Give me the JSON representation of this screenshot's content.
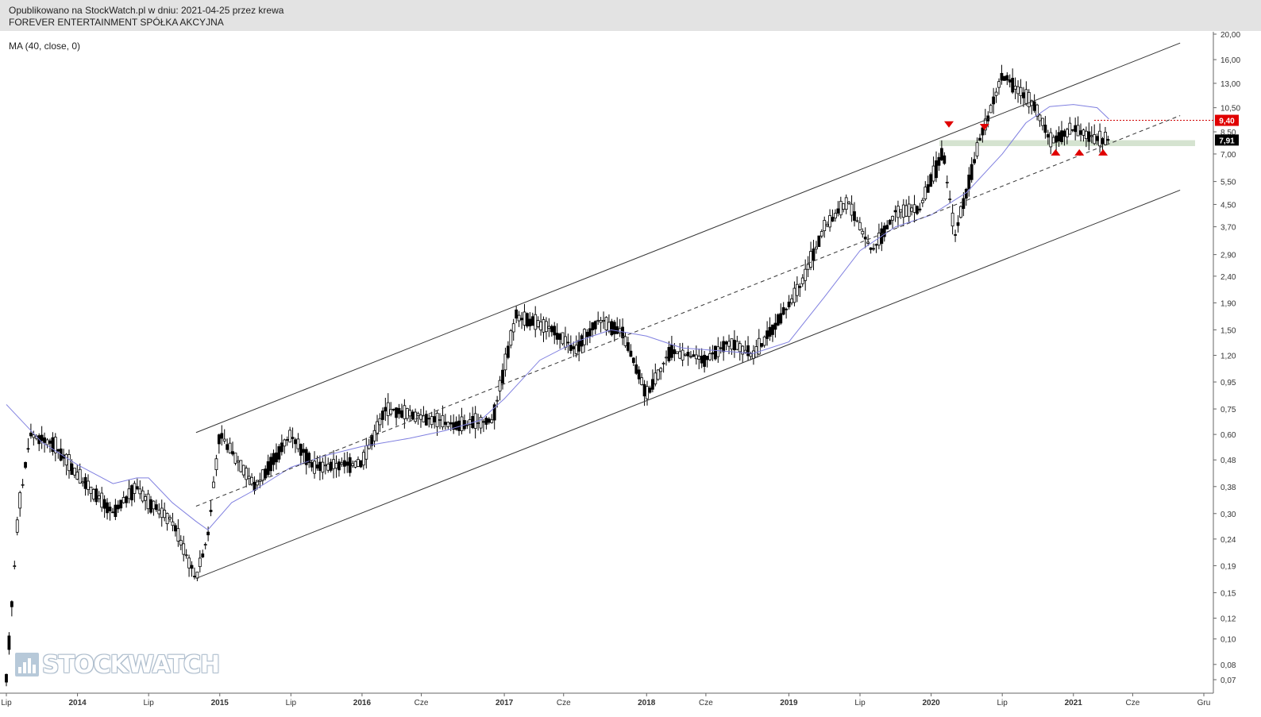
{
  "header": {
    "published": "Opublikowano na StockWatch.pl w dniu: 2021-04-25 przez krewa",
    "instrument": "FOREVER ENTERTAINMENT SPÓŁKA AKCYJNA"
  },
  "indicator_label": "MA (40, close, 0)",
  "watermark": {
    "text": "STOCKWATCH",
    "icon": "bar-chart-logo-icon"
  },
  "colors": {
    "candle": "#000000",
    "ma": "#8080e0",
    "channel": "#333333",
    "resistance": "#d00000",
    "marker": "#e00000",
    "zone": "#d5e3d0",
    "last_price_bg": "#000000",
    "level_bg": "#e00000"
  },
  "chart_data": {
    "type": "candlestick",
    "title": "",
    "x_tick_labels": [
      {
        "label": "Lip",
        "date": "2013-07"
      },
      {
        "label": "2014",
        "date": "2014-01"
      },
      {
        "label": "Lip",
        "date": "2014-07"
      },
      {
        "label": "2015",
        "date": "2015-01"
      },
      {
        "label": "Lip",
        "date": "2015-07"
      },
      {
        "label": "2016",
        "date": "2016-01"
      },
      {
        "label": "Cze",
        "date": "2016-06"
      },
      {
        "label": "2017",
        "date": "2017-01"
      },
      {
        "label": "Cze",
        "date": "2017-06"
      },
      {
        "label": "2018",
        "date": "2018-01"
      },
      {
        "label": "Cze",
        "date": "2018-06"
      },
      {
        "label": "2019",
        "date": "2019-01"
      },
      {
        "label": "Lip",
        "date": "2019-07"
      },
      {
        "label": "2020",
        "date": "2020-01"
      },
      {
        "label": "Lip",
        "date": "2020-07"
      },
      {
        "label": "2021",
        "date": "2021-01"
      },
      {
        "label": "Cze",
        "date": "2021-06"
      },
      {
        "label": "Gru",
        "date": "2021-12"
      }
    ],
    "y_scale": "log",
    "y_tick_labels": [
      "20,00",
      "16,00",
      "13,00",
      "10,50",
      "8,50",
      "7,00",
      "5,50",
      "4,50",
      "3,70",
      "2,90",
      "2,40",
      "1,90",
      "1,50",
      "1,20",
      "0,95",
      "0,75",
      "0,60",
      "0,48",
      "0,38",
      "0,30",
      "0,24",
      "0,19",
      "0,15",
      "0,12",
      "0,10",
      "0,08",
      "0,07"
    ],
    "price_labels": {
      "resistance": "9,40",
      "last_close": "7,91"
    },
    "resistance_level": 9.4,
    "last_close": 7.91,
    "support_zone": [
      7.5,
      7.9
    ],
    "series": [
      {
        "name": "MA (40, close, 0)",
        "kind": "line",
        "points": [
          [
            "2013-07",
            0.78
          ],
          [
            "2013-10",
            0.56
          ],
          [
            "2014-01",
            0.46
          ],
          [
            "2014-04",
            0.39
          ],
          [
            "2014-06",
            0.41
          ],
          [
            "2014-07",
            0.41
          ],
          [
            "2014-09",
            0.33
          ],
          [
            "2014-11",
            0.28
          ],
          [
            "2014-12",
            0.26
          ],
          [
            "2015-02",
            0.33
          ],
          [
            "2015-04",
            0.37
          ],
          [
            "2015-07",
            0.45
          ],
          [
            "2015-10",
            0.5
          ],
          [
            "2016-01",
            0.54
          ],
          [
            "2016-05",
            0.58
          ],
          [
            "2016-08",
            0.62
          ],
          [
            "2016-11",
            0.68
          ],
          [
            "2017-01",
            0.82
          ],
          [
            "2017-04",
            1.15
          ],
          [
            "2017-07",
            1.35
          ],
          [
            "2017-10",
            1.5
          ],
          [
            "2018-01",
            1.42
          ],
          [
            "2018-04",
            1.28
          ],
          [
            "2018-07",
            1.25
          ],
          [
            "2018-10",
            1.22
          ],
          [
            "2019-01",
            1.35
          ],
          [
            "2019-04",
            2.0
          ],
          [
            "2019-07",
            3.0
          ],
          [
            "2019-10",
            3.7
          ],
          [
            "2020-01",
            4.1
          ],
          [
            "2020-04",
            5.0
          ],
          [
            "2020-07",
            7.0
          ],
          [
            "2020-09",
            9.2
          ],
          [
            "2020-11",
            10.6
          ],
          [
            "2021-01",
            10.8
          ],
          [
            "2021-03",
            10.5
          ],
          [
            "2021-04",
            9.5
          ]
        ]
      },
      {
        "name": "",
        "kind": "candles_weekly_approx",
        "path": [
          [
            "2013-07",
            0.07
          ],
          [
            "2013-08",
            0.3
          ],
          [
            "2013-09",
            0.6
          ],
          [
            "2013-11",
            0.55
          ],
          [
            "2014-01",
            0.42
          ],
          [
            "2014-04",
            0.3
          ],
          [
            "2014-06",
            0.38
          ],
          [
            "2014-07",
            0.33
          ],
          [
            "2014-09",
            0.28
          ],
          [
            "2014-11",
            0.17
          ],
          [
            "2014-12",
            0.25
          ],
          [
            "2015-01",
            0.6
          ],
          [
            "2015-04",
            0.38
          ],
          [
            "2015-07",
            0.6
          ],
          [
            "2015-09",
            0.45
          ],
          [
            "2016-01",
            0.47
          ],
          [
            "2016-03",
            0.75
          ],
          [
            "2016-06",
            0.7
          ],
          [
            "2016-09",
            0.65
          ],
          [
            "2016-12",
            0.68
          ],
          [
            "2017-02",
            1.7
          ],
          [
            "2017-05",
            1.5
          ],
          [
            "2017-07",
            1.25
          ],
          [
            "2017-09",
            1.65
          ],
          [
            "2017-11",
            1.45
          ],
          [
            "2018-01",
            0.85
          ],
          [
            "2018-03",
            1.25
          ],
          [
            "2018-06",
            1.15
          ],
          [
            "2018-08",
            1.35
          ],
          [
            "2018-10",
            1.2
          ],
          [
            "2018-12",
            1.6
          ],
          [
            "2019-02",
            2.2
          ],
          [
            "2019-04",
            3.7
          ],
          [
            "2019-06",
            4.6
          ],
          [
            "2019-08",
            3.0
          ],
          [
            "2019-10",
            4.2
          ],
          [
            "2019-12",
            4.3
          ],
          [
            "2020-02",
            7.2
          ],
          [
            "2020-03",
            3.4
          ],
          [
            "2020-05",
            7.6
          ],
          [
            "2020-07",
            14.0
          ],
          [
            "2020-09",
            11.5
          ],
          [
            "2020-10",
            10.2
          ],
          [
            "2020-11",
            7.8
          ],
          [
            "2021-01",
            8.8
          ],
          [
            "2021-03",
            7.9
          ],
          [
            "2021-04",
            7.91
          ]
        ]
      },
      {
        "name": "",
        "kind": "trendline_upper",
        "points": [
          [
            "2014-11",
            0.61
          ],
          [
            "2021-10",
            18.5
          ]
        ]
      },
      {
        "name": "",
        "kind": "trendline_lower",
        "points": [
          [
            "2014-11",
            0.17
          ],
          [
            "2021-10",
            5.1
          ]
        ]
      },
      {
        "name": "",
        "kind": "trendline_mid_dashed",
        "points": [
          [
            "2014-11",
            0.32
          ],
          [
            "2021-10",
            9.8
          ]
        ]
      }
    ],
    "markers": [
      {
        "type": "down-triangle",
        "date": "2020-02",
        "price": 9.0
      },
      {
        "type": "down-triangle",
        "date": "2020-05",
        "price": 8.8
      },
      {
        "type": "up-triangle",
        "date": "2020-11",
        "price": 7.1
      },
      {
        "type": "up-triangle",
        "date": "2021-01",
        "price": 7.1
      },
      {
        "type": "up-triangle",
        "date": "2021-03",
        "price": 7.1
      }
    ]
  }
}
